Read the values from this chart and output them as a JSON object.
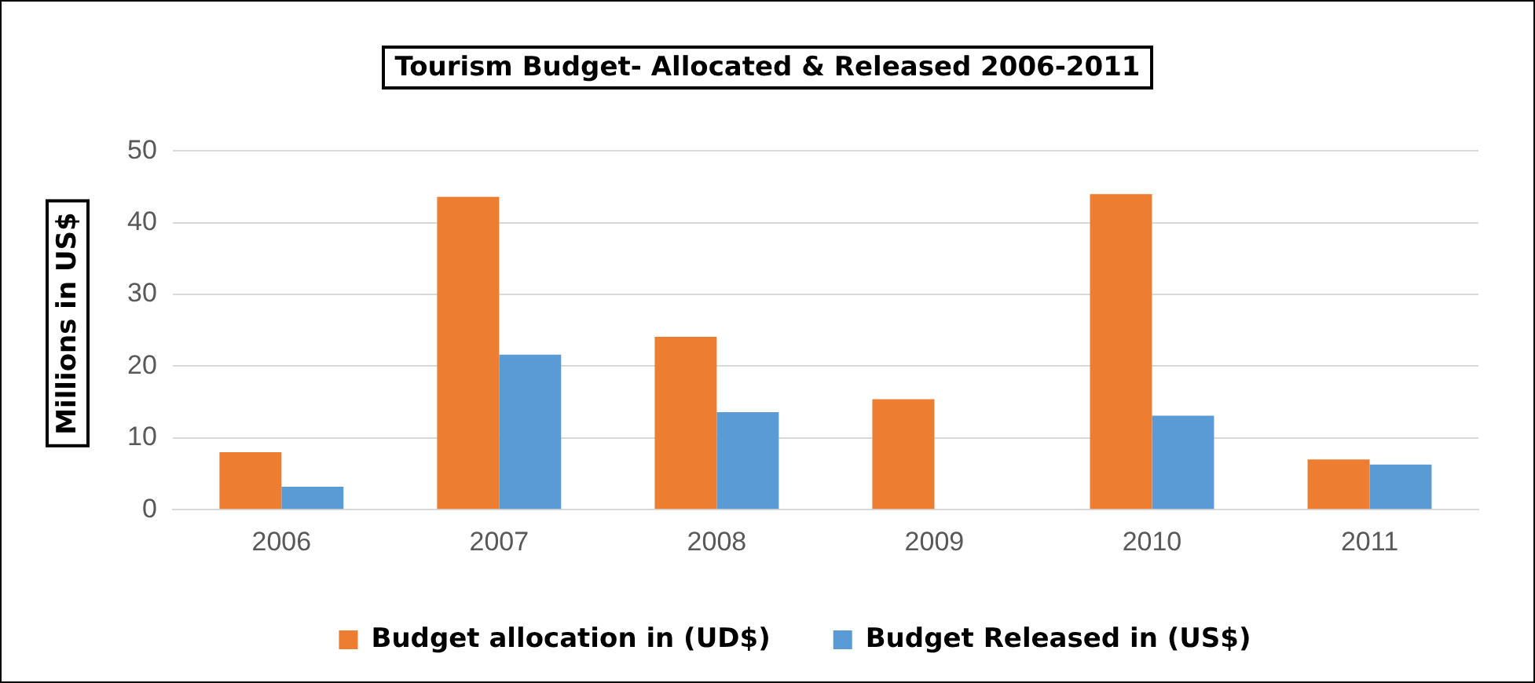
{
  "chart_data": {
    "type": "bar",
    "title": "Tourism Budget- Allocated & Released 2006-2011",
    "ylabel": "Millions in US$",
    "categories": [
      "2006",
      "2007",
      "2008",
      "2009",
      "2010",
      "2011"
    ],
    "series": [
      {
        "name": "Budget allocation in (UD$)",
        "color": "#ed7d31",
        "values": [
          8.0,
          43.6,
          24.1,
          15.4,
          44.0,
          7.0
        ]
      },
      {
        "name": "Budget Released in (US$)",
        "color": "#5b9bd5",
        "values": [
          3.2,
          21.6,
          13.6,
          0,
          13.1,
          6.3
        ]
      }
    ],
    "ylim": [
      0,
      50
    ],
    "yticks": [
      0,
      10,
      20,
      30,
      40,
      50
    ],
    "grid": "y",
    "legend": "bottom"
  }
}
